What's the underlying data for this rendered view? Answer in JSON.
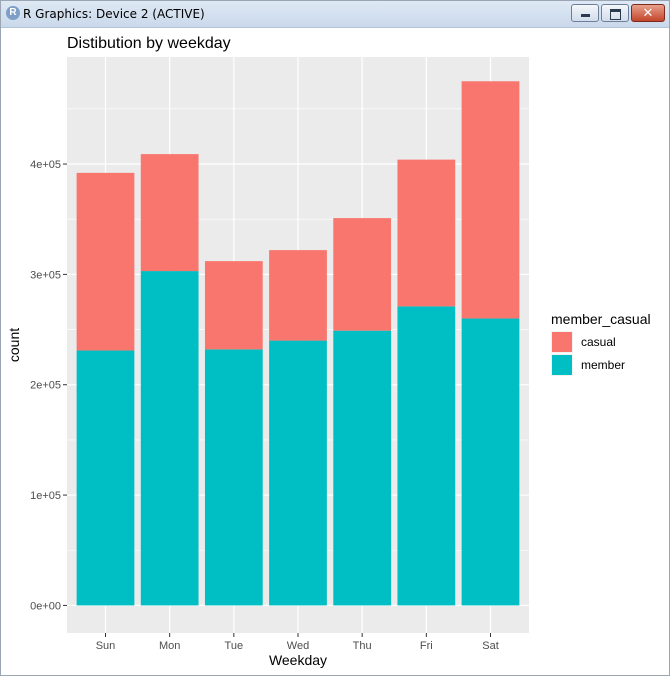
{
  "window": {
    "title": "R Graphics: Device 2 (ACTIVE)",
    "app_icon_letter": "R",
    "close_glyph": "✕"
  },
  "chart_data": {
    "type": "bar",
    "stacked": true,
    "title": "Distibution by weekday",
    "xlabel": "Weekday",
    "ylabel": "count",
    "categories": [
      "Sun",
      "Mon",
      "Tue",
      "Wed",
      "Thu",
      "Fri",
      "Sat"
    ],
    "series": [
      {
        "name": "member",
        "color": "#00BFC4",
        "values": [
          231000,
          303000,
          232000,
          240000,
          249000,
          271000,
          260000
        ]
      },
      {
        "name": "casual",
        "color": "#F8766D",
        "values": [
          161000,
          106000,
          80000,
          82000,
          102000,
          133000,
          215000
        ]
      }
    ],
    "ylim": [
      -25000,
      497000
    ],
    "yticks": [
      0,
      100000,
      200000,
      300000,
      400000
    ],
    "ytick_labels": [
      "0e+00",
      "1e+05",
      "2e+05",
      "3e+05",
      "4e+05"
    ],
    "grid": true,
    "legend": {
      "title": "member_casual",
      "position": "right",
      "entries": [
        {
          "name": "casual",
          "color": "#F8766D"
        },
        {
          "name": "member",
          "color": "#00BFC4"
        }
      ]
    }
  }
}
